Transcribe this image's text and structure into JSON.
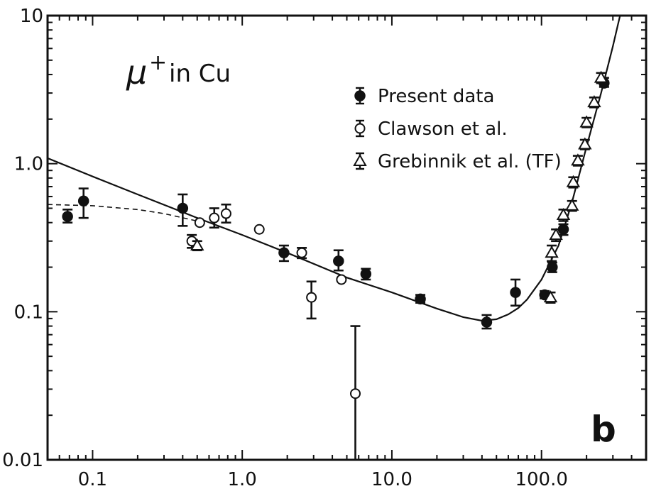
{
  "chart_data": {
    "type": "scatter",
    "title": "",
    "xlabel": "",
    "ylabel": "",
    "x_scale": "log",
    "y_scale": "log",
    "xlim": [
      0.05,
      500
    ],
    "ylim": [
      0.01,
      10
    ],
    "grid": false,
    "legend_placement": "upper-right",
    "x_ticks": [
      {
        "value": 0.1,
        "label": "0.1"
      },
      {
        "value": 1.0,
        "label": "1.0"
      },
      {
        "value": 10.0,
        "label": "10.0"
      },
      {
        "value": 100.0,
        "label": "100.0"
      }
    ],
    "y_ticks": [
      {
        "value": 0.01,
        "label": "0.01"
      },
      {
        "value": 0.1,
        "label": "0.1"
      },
      {
        "value": 1.0,
        "label": "1.0"
      },
      {
        "value": 10,
        "label": "10"
      }
    ],
    "annotations": [
      {
        "text_main": "μ",
        "text_sup": "+",
        "text_rest": "in Cu"
      },
      {
        "text": "b"
      }
    ],
    "series": [
      {
        "name": "Present data",
        "marker": "filled-circle",
        "points": [
          {
            "x": 0.068,
            "y": 0.44,
            "ylo": 0.4,
            "yhi": 0.49
          },
          {
            "x": 0.087,
            "y": 0.56,
            "ylo": 0.43,
            "yhi": 0.68
          },
          {
            "x": 0.4,
            "y": 0.5,
            "ylo": 0.38,
            "yhi": 0.62
          },
          {
            "x": 1.9,
            "y": 0.25,
            "ylo": 0.22,
            "yhi": 0.28
          },
          {
            "x": 4.4,
            "y": 0.22,
            "ylo": 0.19,
            "yhi": 0.26
          },
          {
            "x": 6.7,
            "y": 0.18,
            "ylo": 0.165,
            "yhi": 0.195
          },
          {
            "x": 15.5,
            "y": 0.122,
            "ylo": 0.115,
            "yhi": 0.13
          },
          {
            "x": 43,
            "y": 0.085,
            "ylo": 0.077,
            "yhi": 0.095
          },
          {
            "x": 67,
            "y": 0.135,
            "ylo": 0.11,
            "yhi": 0.165
          },
          {
            "x": 105,
            "y": 0.13,
            "ylo": 0.123,
            "yhi": 0.138
          },
          {
            "x": 118,
            "y": 0.2,
            "ylo": 0.185,
            "yhi": 0.215
          },
          {
            "x": 140,
            "y": 0.36,
            "ylo": 0.33,
            "yhi": 0.39
          },
          {
            "x": 262,
            "y": 3.5,
            "ylo": 3.3,
            "yhi": 3.8
          }
        ]
      },
      {
        "name": "Clawson et al.",
        "marker": "open-circle",
        "points": [
          {
            "x": 0.46,
            "y": 0.3,
            "ylo": 0.27,
            "yhi": 0.33
          },
          {
            "x": 0.52,
            "y": 0.4,
            "ylo": 0.4,
            "yhi": 0.4
          },
          {
            "x": 0.65,
            "y": 0.43,
            "ylo": 0.37,
            "yhi": 0.5
          },
          {
            "x": 0.78,
            "y": 0.46,
            "ylo": 0.4,
            "yhi": 0.53
          },
          {
            "x": 1.3,
            "y": 0.36,
            "ylo": 0.36,
            "yhi": 0.36
          },
          {
            "x": 2.5,
            "y": 0.25,
            "ylo": 0.23,
            "yhi": 0.27
          },
          {
            "x": 2.9,
            "y": 0.125,
            "ylo": 0.09,
            "yhi": 0.16
          },
          {
            "x": 4.6,
            "y": 0.165,
            "ylo": 0.165,
            "yhi": 0.165
          },
          {
            "x": 5.7,
            "y": 0.028,
            "ylo": 0.001,
            "yhi": 0.08
          }
        ]
      },
      {
        "name": "Grebinnik et al. (TF)",
        "marker": "open-triangle",
        "points": [
          {
            "x": 0.5,
            "y": 0.28,
            "ylo": 0.26,
            "yhi": 0.3
          },
          {
            "x": 115,
            "y": 0.125,
            "ylo": 0.115,
            "yhi": 0.135
          },
          {
            "x": 117,
            "y": 0.25,
            "ylo": 0.22,
            "yhi": 0.28
          },
          {
            "x": 125,
            "y": 0.33,
            "ylo": 0.3,
            "yhi": 0.36
          },
          {
            "x": 140,
            "y": 0.45,
            "ylo": 0.41,
            "yhi": 0.49
          },
          {
            "x": 160,
            "y": 0.52,
            "ylo": 0.48,
            "yhi": 0.56
          },
          {
            "x": 163,
            "y": 0.75,
            "ylo": 0.69,
            "yhi": 0.81
          },
          {
            "x": 175,
            "y": 1.05,
            "ylo": 0.97,
            "yhi": 1.13
          },
          {
            "x": 195,
            "y": 1.35,
            "ylo": 1.25,
            "yhi": 1.45
          },
          {
            "x": 200,
            "y": 1.9,
            "ylo": 1.76,
            "yhi": 2.04
          },
          {
            "x": 225,
            "y": 2.6,
            "ylo": 2.4,
            "yhi": 2.8
          },
          {
            "x": 250,
            "y": 3.8,
            "ylo": 3.5,
            "yhi": 4.1
          }
        ]
      }
    ],
    "curves": [
      {
        "style": "solid",
        "points": [
          [
            0.05,
            1.09
          ],
          [
            0.1,
            0.82
          ],
          [
            0.2,
            0.62
          ],
          [
            0.5,
            0.43
          ],
          [
            1.0,
            0.33
          ],
          [
            2.0,
            0.25
          ],
          [
            5.0,
            0.17
          ],
          [
            10.0,
            0.135
          ],
          [
            20.0,
            0.105
          ],
          [
            30.0,
            0.092
          ],
          [
            40.0,
            0.087
          ],
          [
            50.0,
            0.089
          ],
          [
            60.0,
            0.096
          ],
          [
            70.0,
            0.106
          ],
          [
            80.0,
            0.121
          ],
          [
            100.0,
            0.165
          ],
          [
            130.0,
            0.28
          ],
          [
            160.0,
            0.55
          ],
          [
            200.0,
            1.3
          ],
          [
            250.0,
            3.0
          ],
          [
            300.0,
            6.2
          ],
          [
            335.0,
            10.0
          ]
        ]
      },
      {
        "style": "dashed",
        "points": [
          [
            0.05,
            0.53
          ],
          [
            0.1,
            0.52
          ],
          [
            0.2,
            0.49
          ],
          [
            0.3,
            0.46
          ],
          [
            0.5,
            0.41
          ]
        ]
      }
    ]
  }
}
